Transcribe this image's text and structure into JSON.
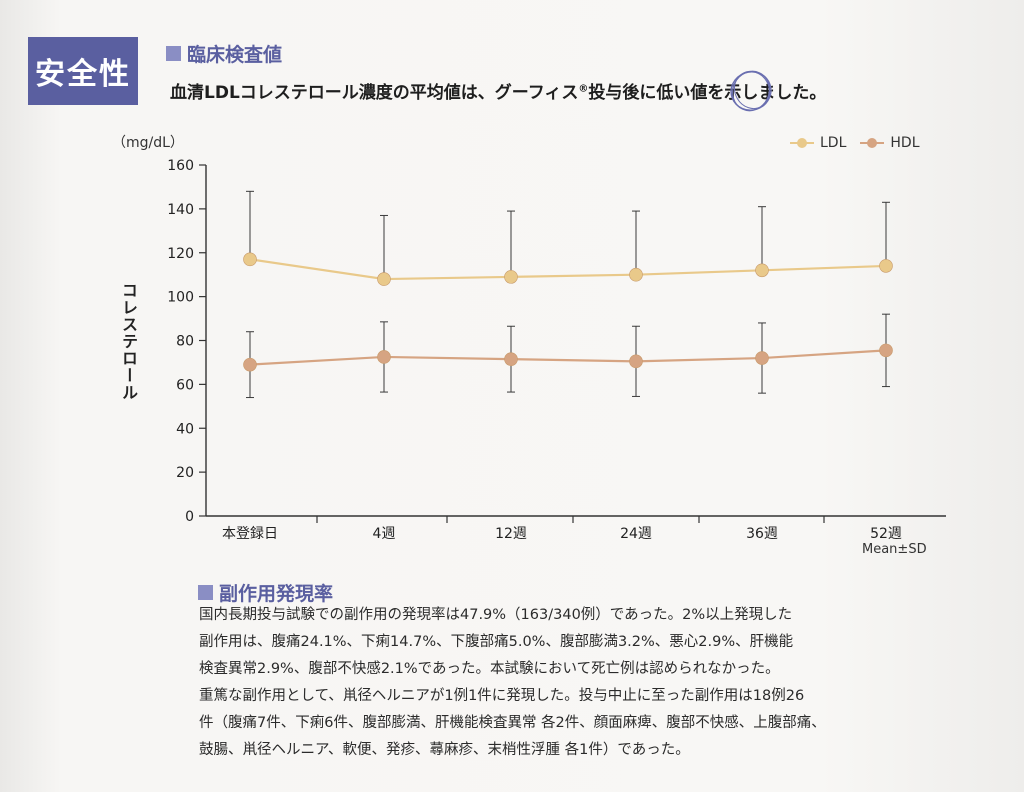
{
  "section_badge": "安全性",
  "lab_heading": "臨床検査値",
  "subtitle": {
    "before": "血清LDLコレステロール濃度の平均値は、グーフィス",
    "mark": "®",
    "after": "投与後に低い値を示しました。"
  },
  "side_effect_heading": "副作用発現率",
  "body_lines": [
    "国内長期投与試験での副作用の発現率は47.9%（163/340例）であった。2%以上発現した",
    "副作用は、腹痛24.1%、下痢14.7%、下腹部痛5.0%、腹部膨満3.2%、悪心2.9%、肝機能",
    "検査異常2.9%、腹部不快感2.1%であった。本試験において死亡例は認められなかった。",
    "重篤な副作用として、鼡径ヘルニアが1例1件に発現した。投与中止に至った副作用は18例26",
    "件（腹痛7件、下痢6件、腹部膨満、肝機能検査異常 各2件、顔面麻痺、腹部不快感、上腹部痛、",
    "鼓腸、鼡径ヘルニア、軟便、発疹、蕁麻疹、末梢性浮腫 各1件）であった。"
  ],
  "chart_data": {
    "type": "line",
    "categories": [
      "本登録日",
      "4週",
      "12週",
      "24週",
      "36週",
      "52週"
    ],
    "series": [
      {
        "name": "LDL",
        "color": "#e9c98a",
        "values": [
          117,
          108,
          109,
          110,
          112,
          114
        ],
        "sd": [
          31,
          29,
          30,
          29,
          29,
          29
        ]
      },
      {
        "name": "HDL",
        "color": "#d6a482",
        "values": [
          69,
          72.5,
          71.5,
          70.5,
          72,
          75.5
        ],
        "sd": [
          15,
          16,
          15,
          16,
          16,
          16.5
        ]
      }
    ],
    "ylabel": "コレステロール",
    "yunit": "（mg/dL）",
    "ylim": [
      0,
      160
    ],
    "yticks": [
      0,
      20,
      40,
      60,
      80,
      100,
      120,
      140,
      160
    ],
    "note": "Mean±SD",
    "legend_position": "top-right",
    "grid": false
  }
}
